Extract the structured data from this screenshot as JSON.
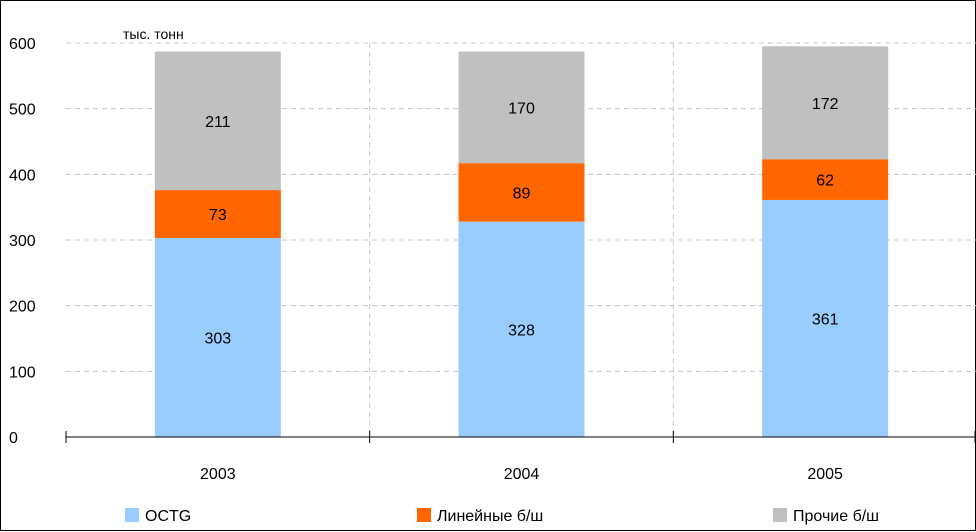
{
  "chart_data": {
    "type": "bar",
    "stacked": true,
    "unit_label": "тыс. тонн",
    "categories": [
      "2003",
      "2004",
      "2005"
    ],
    "series": [
      {
        "name": "OCTG",
        "color": "#99CCFF",
        "values": [
          303,
          328,
          361
        ]
      },
      {
        "name": "Линейные б/ш",
        "color": "#FF6600",
        "values": [
          73,
          89,
          62
        ]
      },
      {
        "name": "Прочие б/ш",
        "color": "#C0C0C0",
        "values": [
          211,
          170,
          172
        ]
      }
    ],
    "ylim": [
      0,
      600
    ],
    "yticks": [
      0,
      100,
      200,
      300,
      400,
      500,
      600
    ],
    "grid": true,
    "legend_position": "bottom"
  }
}
